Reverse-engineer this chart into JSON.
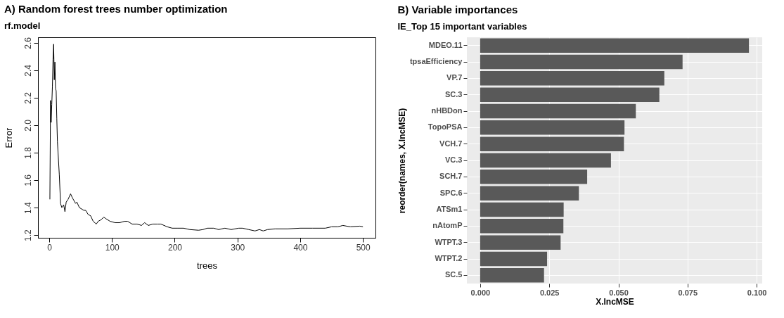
{
  "chart_data": [
    {
      "type": "line",
      "title": "A) Random forest trees number optimization",
      "subtitle": "rf.model",
      "xlabel": "trees",
      "ylabel": "Error",
      "x": [
        1,
        2,
        3,
        4,
        5,
        6,
        7,
        8,
        9,
        10,
        11,
        12,
        13,
        16,
        18,
        20,
        23,
        25,
        27,
        30,
        34,
        37,
        42,
        44,
        48,
        55,
        58,
        62,
        66,
        70,
        75,
        78,
        82,
        87,
        90,
        97,
        105,
        112,
        120,
        125,
        132,
        140,
        147,
        152,
        158,
        165,
        172,
        178,
        188,
        196,
        205,
        214,
        224,
        238,
        245,
        252,
        262,
        270,
        280,
        290,
        302,
        308,
        318,
        328,
        335,
        341,
        348,
        360,
        380,
        400,
        420,
        440,
        450,
        460,
        468,
        480,
        495,
        500
      ],
      "series": [
        {
          "color": "#000000",
          "values": [
            1.46,
            2.18,
            2.02,
            2.15,
            2.28,
            2.48,
            2.59,
            2.33,
            2.46,
            2.27,
            2.25,
            2.05,
            1.88,
            1.64,
            1.43,
            1.4,
            1.42,
            1.37,
            1.44,
            1.46,
            1.5,
            1.47,
            1.43,
            1.44,
            1.4,
            1.38,
            1.38,
            1.35,
            1.34,
            1.3,
            1.28,
            1.3,
            1.31,
            1.33,
            1.32,
            1.3,
            1.29,
            1.29,
            1.3,
            1.3,
            1.28,
            1.28,
            1.27,
            1.29,
            1.27,
            1.28,
            1.28,
            1.28,
            1.26,
            1.25,
            1.25,
            1.25,
            1.24,
            1.235,
            1.24,
            1.25,
            1.25,
            1.24,
            1.25,
            1.24,
            1.25,
            1.25,
            1.24,
            1.23,
            1.24,
            1.23,
            1.24,
            1.245,
            1.245,
            1.25,
            1.25,
            1.25,
            1.26,
            1.26,
            1.27,
            1.26,
            1.265,
            1.26
          ]
        }
      ],
      "xlim": [
        -18,
        520
      ],
      "xticks": [
        0,
        100,
        200,
        300,
        400,
        500
      ],
      "ylim": [
        1.18,
        2.64
      ],
      "yticks": [
        1.2,
        1.4,
        1.6,
        1.8,
        {
          "value": 2.0,
          "label": "2.0"
        },
        2.2,
        2.4,
        2.6
      ],
      "grid": false,
      "line_style": "solid"
    },
    {
      "type": "bar",
      "orientation": "horizontal",
      "title": "B) Variable importances",
      "subtitle": "IE_Top 15 important variables",
      "xlabel": "X.IncMSE",
      "ylabel": "reorder(names, X.IncMSE)",
      "categories": [
        "MDEO.11",
        "tpsaEfficiency",
        "VP.7",
        "SC.3",
        "nHBDon",
        "TopoPSA",
        "VCH.7",
        "VC.3",
        "SCH.7",
        "SPC.6",
        "ATSm1",
        "nAtomP",
        "WTPT.3",
        "WTPT.2",
        "SC.5"
      ],
      "series": [
        {
          "color": "#595959",
          "values": [
            0.0972,
            0.0732,
            0.0666,
            0.0648,
            0.0563,
            0.0522,
            0.052,
            0.0473,
            0.0387,
            0.0357,
            0.0302,
            0.0301,
            0.0291,
            0.0242,
            0.0231
          ]
        }
      ],
      "xlim": [
        -0.0048,
        0.102
      ],
      "xticks": [
        {
          "value": 0,
          "label": "0.000"
        },
        {
          "value": 0.025,
          "label": "0.025"
        },
        {
          "value": 0.05,
          "label": "0.050"
        },
        {
          "value": 0.075,
          "label": "0.075"
        },
        {
          "value": 0.1,
          "label": "0.100"
        }
      ],
      "grid": true
    }
  ]
}
